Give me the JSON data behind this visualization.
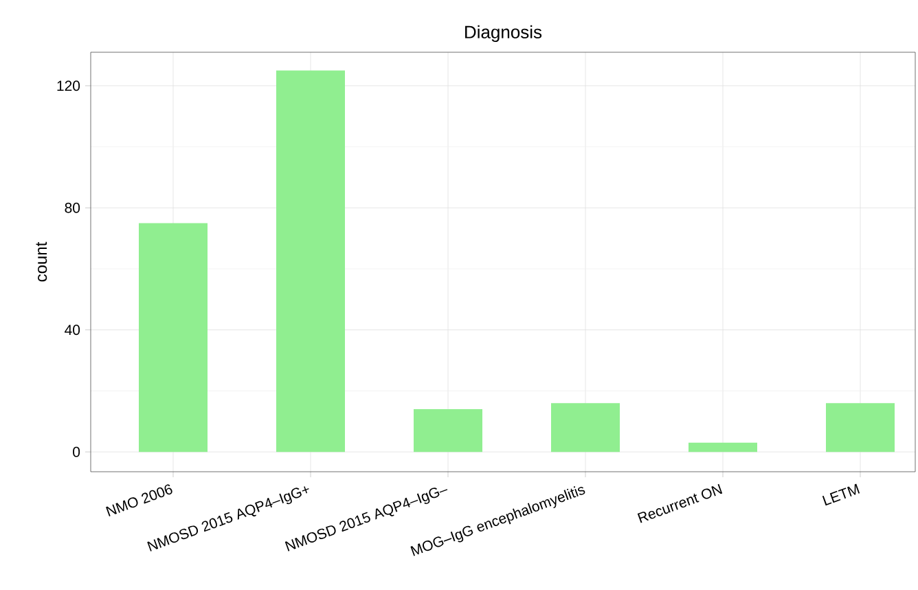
{
  "chart_data": {
    "type": "bar",
    "title": "Diagnosis",
    "ylabel": "count",
    "categories": [
      "NMO 2006",
      "NMOSD 2015 AQP4–IgG+",
      "NMOSD 2015 AQP4–IgG–",
      "MOG–IgG encephalomyelitis",
      "Recurrent ON",
      "LETM"
    ],
    "values": [
      75,
      125,
      14,
      16,
      3,
      16
    ],
    "color": "#90ee90",
    "ylim": [
      -6.5,
      131
    ],
    "yticks": [
      0,
      40,
      80,
      120
    ],
    "grid": true
  }
}
